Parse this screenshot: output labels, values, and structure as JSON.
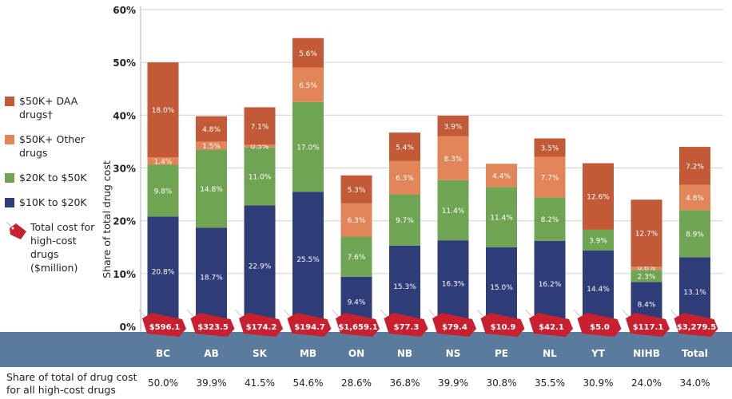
{
  "legend": {
    "daa": "$50K+ DAA drugs†",
    "other": "$50K+ Other drugs",
    "mid": "$20K to $50K",
    "low": "$10K to $20K",
    "tag": "Total cost for high-cost drugs ($million)"
  },
  "footer_label": "Share of total of drug cost for all high-cost drugs",
  "colors": {
    "daa": "#c25a38",
    "other": "#e2865a",
    "mid": "#6fa552",
    "low": "#2e3c78",
    "tag": "#c8202e",
    "band": "#5b7b9c"
  },
  "chart_data": {
    "type": "bar",
    "stacked": true,
    "ylabel": "Share of total drug cost",
    "ylim": [
      0,
      60
    ],
    "yticks": [
      "0%",
      "10%",
      "20%",
      "30%",
      "40%",
      "50%",
      "60%"
    ],
    "categories": [
      "BC",
      "AB",
      "SK",
      "MB",
      "ON",
      "NB",
      "NS",
      "PE",
      "NL",
      "YT",
      "NIHB",
      "Total"
    ],
    "series": [
      {
        "name": "$10K to $20K",
        "key": "low",
        "values": [
          20.8,
          18.7,
          22.9,
          25.5,
          9.4,
          15.3,
          16.3,
          15.0,
          16.2,
          14.4,
          8.4,
          13.1
        ]
      },
      {
        "name": "$20K to $50K",
        "key": "mid",
        "values": [
          9.8,
          14.8,
          11.0,
          17.0,
          7.6,
          9.7,
          11.4,
          11.4,
          8.2,
          3.9,
          2.3,
          8.9
        ]
      },
      {
        "name": "$50K+ Other drugs",
        "key": "other",
        "values": [
          1.4,
          1.5,
          0.5,
          6.5,
          6.3,
          6.3,
          8.3,
          4.4,
          7.7,
          0,
          0.6,
          4.8
        ]
      },
      {
        "name": "$50K+ DAA drugs",
        "key": "daa",
        "values": [
          18.0,
          4.8,
          7.1,
          5.6,
          5.3,
          5.4,
          3.9,
          0,
          3.5,
          12.6,
          12.7,
          7.2
        ]
      }
    ],
    "cost_labels": [
      "$596.1",
      "$323.5",
      "$174.2",
      "$194.7",
      "$1,659.1",
      "$77.3",
      "$79.4",
      "$10.9",
      "$42.1",
      "$5.0",
      "$117.1",
      "$3,279.5"
    ],
    "total_share": [
      "50.0%",
      "39.9%",
      "41.5%",
      "54.6%",
      "28.6%",
      "36.8%",
      "39.9%",
      "30.8%",
      "35.5%",
      "30.9%",
      "24.0%",
      "34.0%"
    ]
  }
}
